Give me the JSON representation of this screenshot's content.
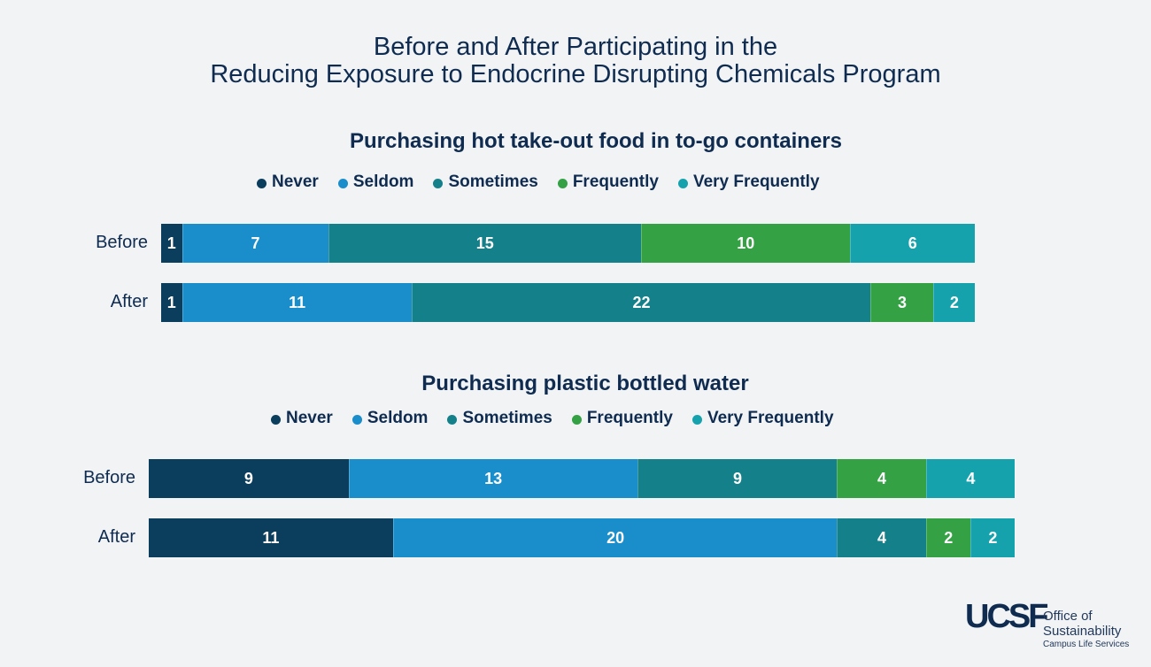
{
  "title": {
    "line1": "Before and After Participating in the",
    "line2": "Reducing Exposure to Endocrine Disrupting Chemicals Program"
  },
  "colors": {
    "Never": "#0b3d5c",
    "Seldom": "#1a8dcb",
    "Sometimes": "#14808a",
    "Frequently": "#34a144",
    "Very Frequently": "#16a2ad"
  },
  "chart_data": [
    {
      "type": "bar",
      "orientation": "horizontal",
      "stacked": true,
      "title": "Purchasing hot take-out food in to-go containers",
      "categories": [
        "Before",
        "After"
      ],
      "series": [
        {
          "name": "Never",
          "values": [
            1,
            1
          ]
        },
        {
          "name": "Seldom",
          "values": [
            7,
            11
          ]
        },
        {
          "name": "Sometimes",
          "values": [
            15,
            22
          ]
        },
        {
          "name": "Frequently",
          "values": [
            10,
            3
          ]
        },
        {
          "name": "Very Frequently",
          "values": [
            6,
            2
          ]
        }
      ],
      "legend": "top"
    },
    {
      "type": "bar",
      "orientation": "horizontal",
      "stacked": true,
      "title": "Purchasing plastic bottled water",
      "categories": [
        "Before",
        "After"
      ],
      "series": [
        {
          "name": "Never",
          "values": [
            9,
            11
          ]
        },
        {
          "name": "Seldom",
          "values": [
            13,
            20
          ]
        },
        {
          "name": "Sometimes",
          "values": [
            9,
            4
          ]
        },
        {
          "name": "Frequently",
          "values": [
            4,
            2
          ]
        },
        {
          "name": "Very Frequently",
          "values": [
            4,
            2
          ]
        }
      ],
      "legend": "top"
    }
  ],
  "logo": {
    "mark": "UCSF",
    "line1": "Office of",
    "line2": "Sustainability",
    "line3": "Campus Life Services"
  }
}
